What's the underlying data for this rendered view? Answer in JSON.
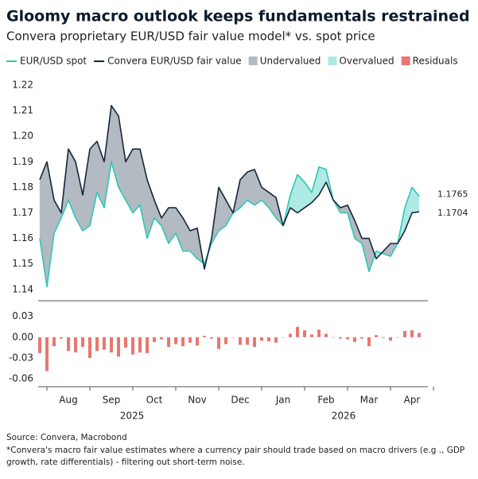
{
  "chart_data": [
    {
      "type": "line",
      "title": "Gloomy macro outlook keeps fundamentals restrained",
      "subtitle": "Convera proprietary EUR/USD fair value model* vs. spot price",
      "ylim": [
        1.136,
        1.224
      ],
      "yticks": [
        1.14,
        1.15,
        1.16,
        1.17,
        1.18,
        1.19,
        {
          "value": 1.2,
          "label": "1.20"
        },
        1.21,
        1.22
      ],
      "series": [
        {
          "name": "EUR/USD spot",
          "color": "#2fc6b5",
          "end_label": "1.1765",
          "values": [
            1.16,
            1.141,
            1.162,
            1.168,
            1.175,
            1.168,
            1.163,
            1.165,
            1.178,
            1.172,
            1.19,
            1.18,
            1.175,
            1.17,
            1.173,
            1.16,
            1.168,
            1.165,
            1.158,
            1.162,
            1.155,
            1.155,
            1.152,
            1.15,
            1.158,
            1.163,
            1.165,
            1.17,
            1.172,
            1.175,
            1.173,
            1.175,
            1.172,
            1.168,
            1.165,
            1.177,
            1.185,
            1.182,
            1.178,
            1.188,
            1.187,
            1.175,
            1.17,
            1.17,
            1.16,
            1.158,
            1.147,
            1.155,
            1.154,
            1.153,
            1.158,
            1.172,
            1.18,
            1.1765
          ]
        },
        {
          "name": "Convera EUR/USD fair value",
          "color": "#15263a",
          "end_label": "1.1704",
          "values": [
            1.183,
            1.19,
            1.175,
            1.17,
            1.195,
            1.19,
            1.177,
            1.195,
            1.198,
            1.19,
            1.212,
            1.208,
            1.19,
            1.195,
            1.195,
            1.183,
            1.175,
            1.168,
            1.172,
            1.172,
            1.168,
            1.163,
            1.164,
            1.148,
            1.16,
            1.18,
            1.175,
            1.17,
            1.183,
            1.186,
            1.187,
            1.18,
            1.178,
            1.176,
            1.165,
            1.172,
            1.17,
            1.172,
            1.174,
            1.177,
            1.182,
            1.175,
            1.172,
            1.173,
            1.167,
            1.16,
            1.16,
            1.152,
            1.155,
            1.158,
            1.158,
            1.163,
            1.17,
            1.1704
          ]
        }
      ],
      "fills": [
        {
          "name": "Undervalued",
          "color": "#b3bac2"
        },
        {
          "name": "Overvalued",
          "color": "#aeeae3"
        }
      ]
    },
    {
      "type": "bar",
      "ylim": [
        -0.07,
        0.04
      ],
      "yticks": [
        0.03,
        {
          "value": 0,
          "label": "0.00"
        },
        -0.03,
        -0.06
      ],
      "categories": [
        null,
        null,
        null,
        null,
        "Aug",
        null,
        null,
        null,
        null,
        null,
        "Sep",
        null,
        null,
        null,
        null,
        null,
        "Oct",
        null,
        null,
        null,
        null,
        null,
        "Nov",
        null,
        null,
        null,
        null,
        null,
        "Dec",
        null,
        null,
        null,
        null,
        null,
        "Jan",
        null,
        null,
        null,
        null,
        null,
        "Feb",
        null,
        null,
        null,
        null,
        null,
        "Mar",
        null,
        null,
        null,
        null,
        null,
        "Apr",
        null
      ],
      "years": [
        "2025",
        "2026"
      ],
      "series": [
        {
          "name": "Residuals",
          "color": "#e9776f",
          "values": [
            -0.023,
            -0.049,
            -0.013,
            -0.002,
            -0.02,
            -0.022,
            -0.014,
            -0.03,
            -0.02,
            -0.018,
            -0.022,
            -0.028,
            -0.015,
            -0.025,
            -0.022,
            -0.023,
            -0.007,
            -0.003,
            -0.014,
            -0.01,
            -0.013,
            -0.008,
            -0.012,
            0.002,
            -0.002,
            -0.017,
            -0.01,
            0.0,
            -0.011,
            -0.011,
            -0.014,
            -0.005,
            -0.006,
            -0.008,
            0.0,
            0.005,
            0.015,
            0.01,
            0.004,
            0.011,
            0.005,
            0.0,
            -0.002,
            -0.003,
            -0.007,
            -0.002,
            -0.013,
            0.003,
            -0.001,
            -0.005,
            0.0,
            0.009,
            0.01,
            0.006
          ]
        }
      ]
    }
  ],
  "source": "Source: Convera, Macrobond",
  "note_lines": [
    "*Convera's macro fair value estimates where a currency pair should trade based on macro drivers (e.g ., GDP",
    "growth, rate differentials) - filtering out short-term noise."
  ]
}
